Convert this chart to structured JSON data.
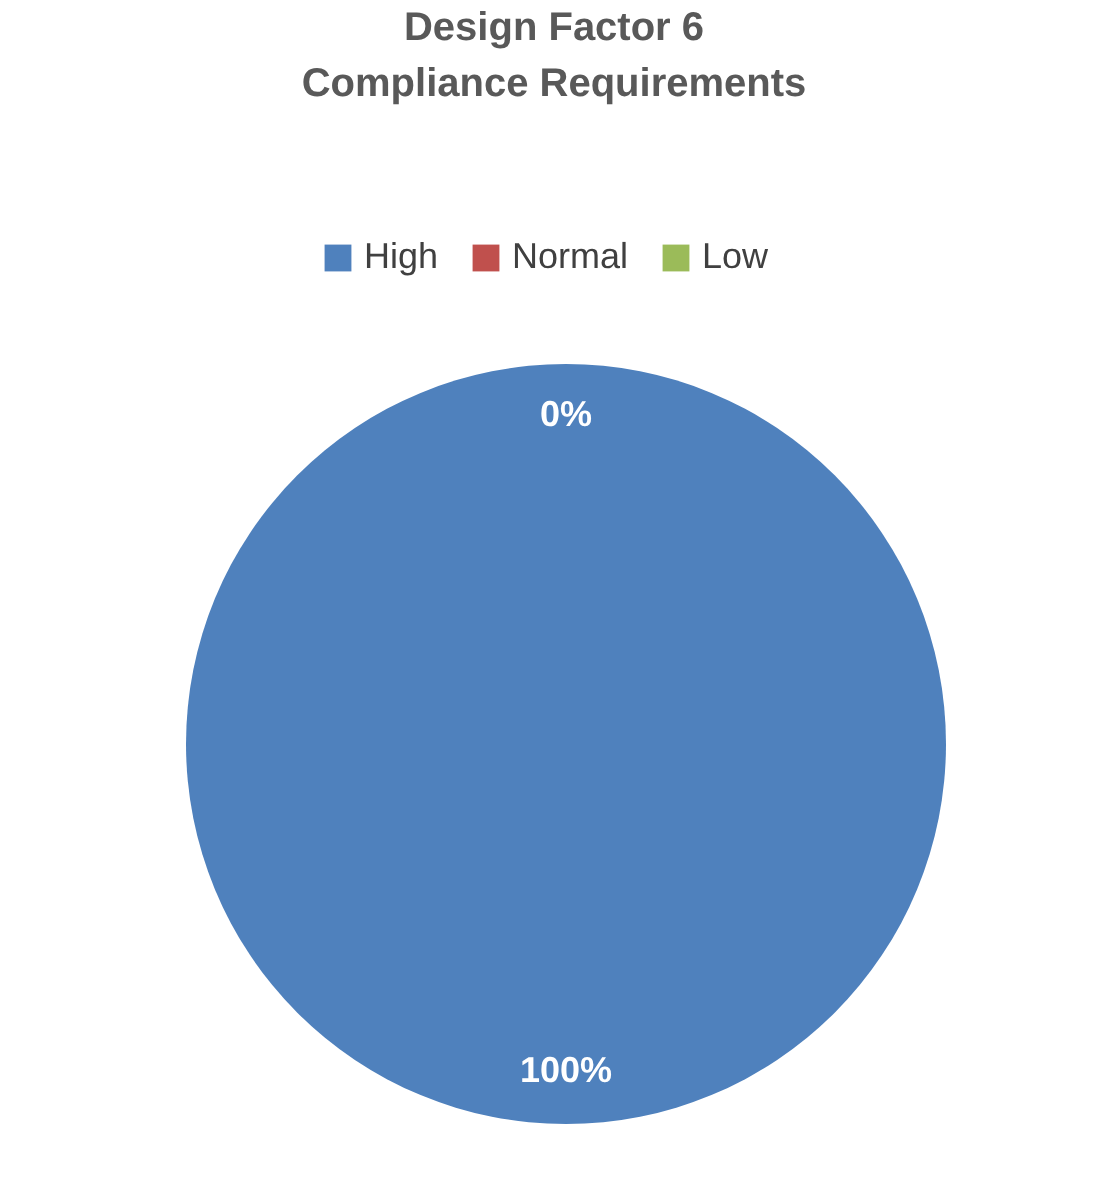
{
  "chart_data": {
    "type": "pie",
    "title": "Design Factor 6 Compliance Requirements",
    "categories": [
      "High",
      "Normal",
      "Low"
    ],
    "values": [
      100,
      0,
      0
    ],
    "colors": [
      "#4f81bd",
      "#c0504d",
      "#9bbb59"
    ],
    "value_labels": [
      "100%",
      "0%",
      null
    ],
    "legend": "top"
  }
}
